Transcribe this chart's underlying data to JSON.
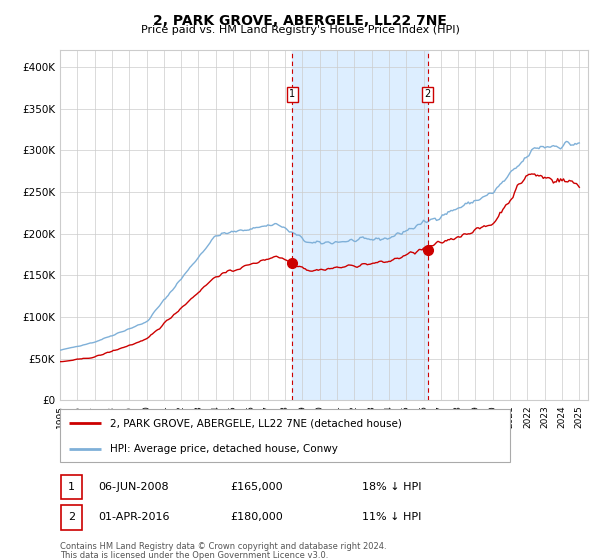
{
  "title": "2, PARK GROVE, ABERGELE, LL22 7NE",
  "subtitle": "Price paid vs. HM Land Registry's House Price Index (HPI)",
  "legend_line1": "2, PARK GROVE, ABERGELE, LL22 7NE (detached house)",
  "legend_line2": "HPI: Average price, detached house, Conwy",
  "transaction1_label": "1",
  "transaction1_date": "06-JUN-2008",
  "transaction1_price": "£165,000",
  "transaction1_hpi": "18% ↓ HPI",
  "transaction1_year": 2008.42,
  "transaction1_price_val": 165000,
  "transaction2_label": "2",
  "transaction2_date": "01-APR-2016",
  "transaction2_price": "£180,000",
  "transaction2_hpi": "11% ↓ HPI",
  "transaction2_year": 2016.25,
  "transaction2_price_val": 180000,
  "footer_line1": "Contains HM Land Registry data © Crown copyright and database right 2024.",
  "footer_line2": "This data is licensed under the Open Government Licence v3.0.",
  "red_line_color": "#cc0000",
  "blue_line_color": "#7fb0d8",
  "shade_color": "#ddeeff",
  "dashed_line_color": "#cc0000",
  "background_color": "#ffffff",
  "grid_color": "#cccccc",
  "ylim": [
    0,
    420000
  ],
  "yticks": [
    0,
    50000,
    100000,
    150000,
    200000,
    250000,
    300000,
    350000,
    400000
  ],
  "ytick_labels": [
    "£0",
    "£50K",
    "£100K",
    "£150K",
    "£200K",
    "£250K",
    "£300K",
    "£350K",
    "£400K"
  ],
  "xlim_start": 1995,
  "xlim_end": 2025.5,
  "year_start": 1995,
  "year_end": 2025
}
